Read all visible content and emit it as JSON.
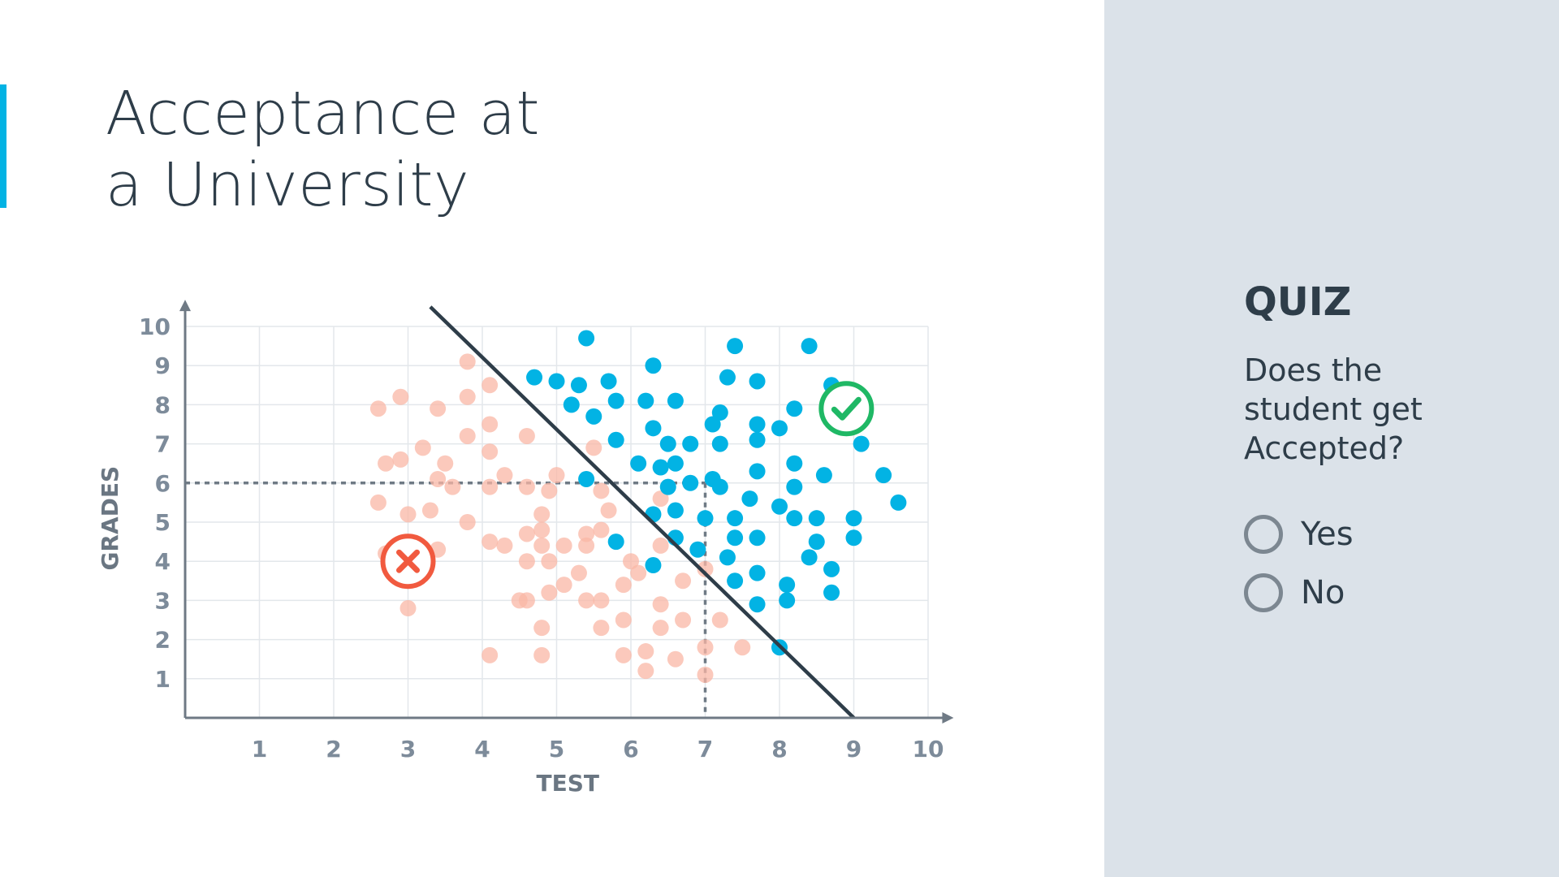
{
  "slide": {
    "title_lines": [
      "Acceptance at",
      "a University"
    ],
    "accent_color": "#02b3e4"
  },
  "quiz": {
    "heading": "QUIZ",
    "question_lines": [
      "Does the",
      "student get",
      "Accepted?"
    ],
    "options": [
      {
        "label": "Yes",
        "selected": false
      },
      {
        "label": "No",
        "selected": false
      }
    ]
  },
  "chart_data": {
    "type": "scatter",
    "title": "",
    "xlabel": "TEST",
    "ylabel": "GRADES",
    "xlim": [
      0,
      10
    ],
    "ylim": [
      0,
      10
    ],
    "xticks": [
      "1",
      "2",
      "3",
      "4",
      "5",
      "6",
      "7",
      "8",
      "9",
      "10"
    ],
    "yticks": [
      "1",
      "2",
      "3",
      "4",
      "5",
      "6",
      "7",
      "8",
      "9",
      "10"
    ],
    "grid": true,
    "boundary_line": {
      "from": [
        3.3,
        10.5
      ],
      "to": [
        9,
        0
      ],
      "color": "#2e3d49"
    },
    "query_point": {
      "x": 7,
      "y": 6,
      "guides": "dashed"
    },
    "markers": [
      {
        "name": "rejected-marker",
        "symbol": "x",
        "x": 3,
        "y": 4,
        "color": "#f15a3f"
      },
      {
        "name": "accepted-marker",
        "symbol": "check",
        "x": 8.9,
        "y": 7.9,
        "color": "#1fb865"
      }
    ],
    "series": [
      {
        "class": "rejected",
        "color": "#f9b7a6",
        "points": [
          [
            2.6,
            7.9
          ],
          [
            2.9,
            8.2
          ],
          [
            3.4,
            7.9
          ],
          [
            3.8,
            8.2
          ],
          [
            3.8,
            9.1
          ],
          [
            4.1,
            8.5
          ],
          [
            3.8,
            7.2
          ],
          [
            4.1,
            7.5
          ],
          [
            3.2,
            6.9
          ],
          [
            2.7,
            6.5
          ],
          [
            2.9,
            6.6
          ],
          [
            3.5,
            6.5
          ],
          [
            3.4,
            6.1
          ],
          [
            3.6,
            5.9
          ],
          [
            4.1,
            6.8
          ],
          [
            4.1,
            5.9
          ],
          [
            4.3,
            6.2
          ],
          [
            4.6,
            5.9
          ],
          [
            4.6,
            7.2
          ],
          [
            5,
            6.2
          ],
          [
            4.9,
            5.8
          ],
          [
            2.6,
            5.5
          ],
          [
            3,
            5.2
          ],
          [
            3.3,
            5.3
          ],
          [
            3.8,
            5
          ],
          [
            4.1,
            4.5
          ],
          [
            4.3,
            4.4
          ],
          [
            4.6,
            4.7
          ],
          [
            4.8,
            4.8
          ],
          [
            4.8,
            5.2
          ],
          [
            4.8,
            4.4
          ],
          [
            5.1,
            4.4
          ],
          [
            2.7,
            4.2
          ],
          [
            3.2,
            4.2
          ],
          [
            3.4,
            4.3
          ],
          [
            4.6,
            4
          ],
          [
            4.9,
            4
          ],
          [
            5.4,
            4.7
          ],
          [
            5.6,
            4.8
          ],
          [
            5.7,
            5.3
          ],
          [
            5.6,
            5.8
          ],
          [
            5.5,
            6.9
          ],
          [
            5.4,
            4.4
          ],
          [
            5.3,
            3.7
          ],
          [
            5.1,
            3.4
          ],
          [
            4.9,
            3.2
          ],
          [
            4.5,
            3
          ],
          [
            4.6,
            3
          ],
          [
            5.4,
            3
          ],
          [
            5.6,
            3
          ],
          [
            5.9,
            3.4
          ],
          [
            6.1,
            3.7
          ],
          [
            6,
            4
          ],
          [
            6.4,
            4.4
          ],
          [
            6.4,
            5.6
          ],
          [
            6.7,
            3.5
          ],
          [
            6.4,
            2.9
          ],
          [
            6.4,
            2.3
          ],
          [
            5.9,
            2.5
          ],
          [
            5.6,
            2.3
          ],
          [
            4.8,
            2.3
          ],
          [
            4.1,
            1.6
          ],
          [
            4.8,
            1.6
          ],
          [
            5.9,
            1.6
          ],
          [
            6.2,
            1.7
          ],
          [
            6.6,
            1.5
          ],
          [
            6.2,
            1.2
          ],
          [
            7,
            1.8
          ],
          [
            7,
            1.1
          ],
          [
            7.5,
            1.8
          ],
          [
            7.2,
            2.5
          ],
          [
            6.7,
            2.5
          ],
          [
            7,
            3.8
          ],
          [
            3,
            2.8
          ]
        ]
      },
      {
        "class": "accepted",
        "color": "#02b3e4",
        "points": [
          [
            5.4,
            9.7
          ],
          [
            4.7,
            8.7
          ],
          [
            5,
            8.6
          ],
          [
            5.3,
            8.5
          ],
          [
            5.7,
            8.6
          ],
          [
            6.3,
            9
          ],
          [
            7.4,
            9.5
          ],
          [
            8.4,
            9.5
          ],
          [
            7.3,
            8.7
          ],
          [
            7.7,
            8.6
          ],
          [
            8.7,
            8.5
          ],
          [
            5.2,
            8
          ],
          [
            5.8,
            8.1
          ],
          [
            6.2,
            8.1
          ],
          [
            6.6,
            8.1
          ],
          [
            5.5,
            7.7
          ],
          [
            7.2,
            7.8
          ],
          [
            8.2,
            7.9
          ],
          [
            7.1,
            7.5
          ],
          [
            6.3,
            7.4
          ],
          [
            5.8,
            7.1
          ],
          [
            6.5,
            7
          ],
          [
            6.8,
            7
          ],
          [
            7.2,
            7
          ],
          [
            7.7,
            7.5
          ],
          [
            7.7,
            7.1
          ],
          [
            8,
            7.4
          ],
          [
            9.1,
            7
          ],
          [
            6.1,
            6.5
          ],
          [
            6.4,
            6.4
          ],
          [
            6.6,
            6.5
          ],
          [
            7.1,
            6.1
          ],
          [
            7.7,
            6.3
          ],
          [
            8.2,
            6.5
          ],
          [
            8.6,
            6.2
          ],
          [
            9.4,
            6.2
          ],
          [
            5.4,
            6.1
          ],
          [
            6.5,
            5.9
          ],
          [
            6.8,
            6
          ],
          [
            7.2,
            5.9
          ],
          [
            7.6,
            5.6
          ],
          [
            8,
            5.4
          ],
          [
            8.2,
            5.9
          ],
          [
            9.6,
            5.5
          ],
          [
            6.3,
            5.2
          ],
          [
            6.6,
            5.3
          ],
          [
            7,
            5.1
          ],
          [
            7.4,
            5.1
          ],
          [
            8.2,
            5.1
          ],
          [
            8.5,
            5.1
          ],
          [
            9,
            5.1
          ],
          [
            5.8,
            4.5
          ],
          [
            6.6,
            4.6
          ],
          [
            7.4,
            4.6
          ],
          [
            7.7,
            4.6
          ],
          [
            8.5,
            4.5
          ],
          [
            9,
            4.6
          ],
          [
            6.3,
            3.9
          ],
          [
            6.9,
            4.3
          ],
          [
            7.3,
            4.1
          ],
          [
            8.4,
            4.1
          ],
          [
            8.7,
            3.8
          ],
          [
            7.4,
            3.5
          ],
          [
            7.7,
            3.7
          ],
          [
            8.1,
            3.4
          ],
          [
            8.7,
            3.2
          ],
          [
            7.7,
            2.9
          ],
          [
            8.1,
            3
          ],
          [
            8,
            1.8
          ]
        ]
      }
    ]
  }
}
